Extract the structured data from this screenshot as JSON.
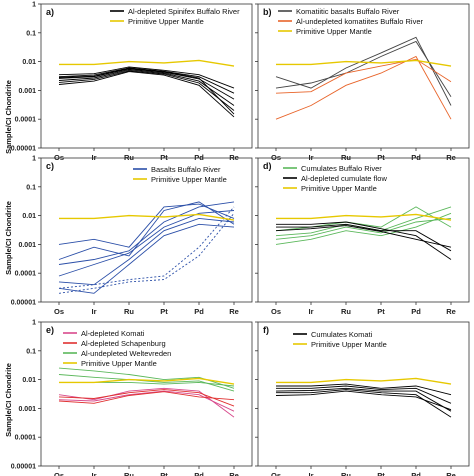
{
  "figure": {
    "y_label": "Sample/CI Chondrite"
  },
  "chart_data": [
    {
      "panel": "a)",
      "type": "line",
      "y_scale": "log",
      "ylim": [
        1e-05,
        1
      ],
      "categories": [
        "Os",
        "Ir",
        "Ru",
        "Pt",
        "Pd",
        "Re"
      ],
      "y_ticks": [
        "1",
        "0.1",
        "0.01",
        "0.001",
        "0.0001",
        "0.00001"
      ],
      "legend": [
        {
          "label": "Al-depleted Spinifex Buffalo River",
          "color": "#000000"
        },
        {
          "label": "Primitive Upper Mantle",
          "color": "#e6c800"
        }
      ],
      "series": [
        {
          "group": "Al-depleted Spinifex Buffalo River",
          "color": "#000000",
          "values": [
            0.0035,
            0.0038,
            0.0065,
            0.005,
            0.0035,
            0.0012
          ]
        },
        {
          "group": "Al-depleted Spinifex Buffalo River",
          "color": "#000000",
          "values": [
            0.003,
            0.0034,
            0.006,
            0.0046,
            0.003,
            0.0008
          ]
        },
        {
          "group": "Al-depleted Spinifex Buffalo River",
          "color": "#000000",
          "values": [
            0.0026,
            0.003,
            0.0056,
            0.0043,
            0.0025,
            0.0005
          ]
        },
        {
          "group": "Al-depleted Spinifex Buffalo River",
          "color": "#000000",
          "values": [
            0.0022,
            0.0027,
            0.0052,
            0.004,
            0.0021,
            0.0003
          ]
        },
        {
          "group": "Al-depleted Spinifex Buffalo River",
          "color": "#000000",
          "values": [
            0.0019,
            0.0024,
            0.0048,
            0.0037,
            0.0018,
            0.0002
          ]
        },
        {
          "group": "Al-depleted Spinifex Buffalo River",
          "color": "#000000",
          "values": [
            0.0016,
            0.0021,
            0.0045,
            0.0034,
            0.0015,
            0.00012
          ]
        },
        {
          "group": "Al-depleted Spinifex Buffalo River",
          "color": "#000000",
          "values": [
            0.0028,
            0.0031,
            0.0058,
            0.0045,
            0.0027,
            0.00015
          ]
        },
        {
          "group": "Primitive Upper Mantle",
          "color": "#e6c800",
          "values": [
            0.008,
            0.008,
            0.01,
            0.009,
            0.011,
            0.007
          ]
        }
      ]
    },
    {
      "panel": "b)",
      "type": "line",
      "y_scale": "log",
      "ylim": [
        1e-05,
        1
      ],
      "categories": [
        "Os",
        "Ir",
        "Ru",
        "Pt",
        "Pd",
        "Re"
      ],
      "y_ticks": [
        "1",
        "0.1",
        "0.01",
        "0.001",
        "0.0001",
        "0.00001"
      ],
      "legend": [
        {
          "label": "Komatiitic basalts Buffalo River",
          "color": "#444444"
        },
        {
          "label": "Al-undepleted komatiites Buffalo River",
          "color": "#e8642a"
        },
        {
          "label": "Primitive Upper Mantle",
          "color": "#e6c800"
        }
      ],
      "series": [
        {
          "group": "Komatiitic basalts Buffalo River",
          "color": "#444444",
          "values": [
            0.003,
            0.0012,
            0.006,
            0.02,
            0.07,
            0.0003
          ]
        },
        {
          "group": "Komatiitic basalts Buffalo River",
          "color": "#444444",
          "values": [
            0.0012,
            0.0018,
            0.004,
            0.015,
            0.05,
            0.0006
          ]
        },
        {
          "group": "Al-undepleted komatiites Buffalo River",
          "color": "#e8642a",
          "values": [
            0.0001,
            0.0003,
            0.0015,
            0.004,
            0.015,
            0.0001
          ]
        },
        {
          "group": "Al-undepleted komatiites Buffalo River",
          "color": "#e8642a",
          "values": [
            0.0008,
            0.0009,
            0.004,
            0.007,
            0.012,
            0.002
          ]
        },
        {
          "group": "Primitive Upper Mantle",
          "color": "#e6c800",
          "values": [
            0.008,
            0.008,
            0.01,
            0.009,
            0.011,
            0.007
          ]
        }
      ]
    },
    {
      "panel": "c)",
      "type": "line",
      "y_scale": "log",
      "ylim": [
        1e-05,
        1
      ],
      "categories": [
        "Os",
        "Ir",
        "Ru",
        "Pt",
        "Pd",
        "Re"
      ],
      "y_ticks": [
        "1",
        "0.1",
        "0.01",
        "0.001",
        "0.0001",
        "0.00001"
      ],
      "legend": [
        {
          "label": "Basalts Buffalo River",
          "color": "#2b4fa8"
        },
        {
          "label": "Primitive Upper Mantle",
          "color": "#e6c800"
        }
      ],
      "series": [
        {
          "group": "Basalts Buffalo River",
          "color": "#2b4fa8",
          "values": [
            0.001,
            0.0015,
            0.0008,
            0.02,
            0.025,
            0.008
          ]
        },
        {
          "group": "Basalts Buffalo River",
          "color": "#2b4fa8",
          "values": [
            0.0003,
            0.0008,
            0.0004,
            0.015,
            0.03,
            0.005
          ]
        },
        {
          "group": "Basalts Buffalo River",
          "color": "#2b4fa8",
          "values": [
            0.0002,
            0.0003,
            0.0006,
            0.006,
            0.02,
            0.03
          ]
        },
        {
          "group": "Basalts Buffalo River",
          "color": "#2b4fa8",
          "values": [
            8e-05,
            0.0002,
            0.0005,
            0.004,
            0.012,
            0.015
          ]
        },
        {
          "group": "Basalts Buffalo River",
          "color": "#2b4fa8",
          "values": [
            5e-05,
            4e-05,
            0.0003,
            0.003,
            0.008,
            0.006
          ]
        },
        {
          "group": "Basalts Buffalo River",
          "color": "#2b4fa8",
          "values": [
            3e-05,
            2e-05,
            0.0002,
            0.002,
            0.005,
            0.004
          ]
        },
        {
          "group": "Basalts Buffalo River",
          "color": "#2b4fa8",
          "dashed": true,
          "values": [
            2e-05,
            3e-05,
            5e-05,
            6e-05,
            0.0004,
            0.012
          ]
        },
        {
          "group": "Basalts Buffalo River",
          "color": "#2b4fa8",
          "dashed": true,
          "values": [
            3e-05,
            4e-05,
            6e-05,
            8e-05,
            0.0008,
            0.02
          ]
        },
        {
          "group": "Primitive Upper Mantle",
          "color": "#e6c800",
          "values": [
            0.008,
            0.008,
            0.01,
            0.009,
            0.011,
            0.007
          ]
        }
      ]
    },
    {
      "panel": "d)",
      "type": "line",
      "y_scale": "log",
      "ylim": [
        1e-05,
        1
      ],
      "categories": [
        "Os",
        "Ir",
        "Ru",
        "Pt",
        "Pd",
        "Re"
      ],
      "y_ticks": [
        "1",
        "0.1",
        "0.01",
        "0.001",
        "0.0001",
        "0.00001"
      ],
      "legend": [
        {
          "label": "Cumulates Buffalo River",
          "color": "#5cb85c"
        },
        {
          "label": "Al-depleted cumulate flow",
          "color": "#000000"
        },
        {
          "label": "Primitive Upper Mantle",
          "color": "#e6c800"
        }
      ],
      "series": [
        {
          "group": "Cumulates Buffalo River",
          "color": "#5cb85c",
          "values": [
            0.003,
            0.004,
            0.006,
            0.004,
            0.02,
            0.004
          ]
        },
        {
          "group": "Cumulates Buffalo River",
          "color": "#5cb85c",
          "values": [
            0.002,
            0.0025,
            0.005,
            0.003,
            0.008,
            0.02
          ]
        },
        {
          "group": "Cumulates Buffalo River",
          "color": "#5cb85c",
          "values": [
            0.0015,
            0.002,
            0.004,
            0.0025,
            0.006,
            0.008
          ]
        },
        {
          "group": "Cumulates Buffalo River",
          "color": "#5cb85c",
          "values": [
            0.001,
            0.0015,
            0.003,
            0.002,
            0.004,
            0.012
          ]
        },
        {
          "group": "Al-depleted cumulate flow",
          "color": "#000000",
          "values": [
            0.004,
            0.004,
            0.005,
            0.003,
            0.003,
            0.0006
          ]
        },
        {
          "group": "Al-depleted cumulate flow",
          "color": "#000000",
          "values": [
            0.005,
            0.005,
            0.006,
            0.0035,
            0.002,
            0.0003
          ]
        },
        {
          "group": "Al-depleted cumulate flow",
          "color": "#000000",
          "values": [
            0.003,
            0.0035,
            0.0045,
            0.0028,
            0.0015,
            0.0008
          ]
        },
        {
          "group": "Primitive Upper Mantle",
          "color": "#e6c800",
          "values": [
            0.008,
            0.008,
            0.01,
            0.009,
            0.011,
            0.007
          ]
        }
      ]
    },
    {
      "panel": "e)",
      "type": "line",
      "y_scale": "log",
      "ylim": [
        1e-05,
        1
      ],
      "categories": [
        "Os",
        "Ir",
        "Ru",
        "Pt",
        "Pd",
        "Re"
      ],
      "y_ticks": [
        "1",
        "0.1",
        "0.01",
        "0.001",
        "0.0001",
        "0.00001"
      ],
      "legend": [
        {
          "label": "Al-depleted Komati",
          "color": "#d84a8c"
        },
        {
          "label": "Al-depleted Schapenburg",
          "color": "#e03030"
        },
        {
          "label": "Al-undepleted Weltevreden",
          "color": "#5cb85c"
        },
        {
          "label": "Primitive Upper Mantle",
          "color": "#e6c800"
        }
      ],
      "series": [
        {
          "group": "Al-undepleted Weltevreden",
          "color": "#5cb85c",
          "values": [
            0.025,
            0.02,
            0.015,
            0.01,
            0.012,
            0.005
          ]
        },
        {
          "group": "Al-undepleted Weltevreden",
          "color": "#5cb85c",
          "values": [
            0.015,
            0.012,
            0.01,
            0.008,
            0.009,
            0.004
          ]
        },
        {
          "group": "Al-undepleted Weltevreden",
          "color": "#5cb85c",
          "values": [
            0.008,
            0.008,
            0.008,
            0.007,
            0.008,
            0.006
          ]
        },
        {
          "group": "Al-depleted Komati",
          "color": "#d84a8c",
          "values": [
            0.003,
            0.002,
            0.004,
            0.005,
            0.004,
            0.0005
          ]
        },
        {
          "group": "Al-depleted Komati",
          "color": "#d84a8c",
          "values": [
            0.002,
            0.0018,
            0.003,
            0.004,
            0.003,
            0.0008
          ]
        },
        {
          "group": "Al-depleted Schapenburg",
          "color": "#e03030",
          "values": [
            0.0025,
            0.0022,
            0.0035,
            0.0045,
            0.0035,
            0.0012
          ]
        },
        {
          "group": "Al-depleted Schapenburg",
          "color": "#e03030",
          "values": [
            0.0018,
            0.0015,
            0.0028,
            0.0038,
            0.0025,
            0.002
          ]
        },
        {
          "group": "Primitive Upper Mantle",
          "color": "#e6c800",
          "values": [
            0.008,
            0.008,
            0.01,
            0.009,
            0.011,
            0.007
          ]
        }
      ]
    },
    {
      "panel": "f)",
      "type": "line",
      "y_scale": "log",
      "ylim": [
        1e-05,
        1
      ],
      "categories": [
        "Os",
        "Ir",
        "Ru",
        "Pt",
        "Pd",
        "Re"
      ],
      "y_ticks": [
        "1",
        "0.1",
        "0.01",
        "0.001",
        "0.0001",
        "0.00001"
      ],
      "legend": [
        {
          "label": "Cumulates Komati",
          "color": "#000000"
        },
        {
          "label": "Primitive Upper Mantle",
          "color": "#e6c800"
        }
      ],
      "series": [
        {
          "group": "Cumulates Komati",
          "color": "#000000",
          "values": [
            0.006,
            0.006,
            0.007,
            0.005,
            0.006,
            0.003
          ]
        },
        {
          "group": "Cumulates Komati",
          "color": "#000000",
          "values": [
            0.005,
            0.005,
            0.006,
            0.0045,
            0.005,
            0.0015
          ]
        },
        {
          "group": "Cumulates Komati",
          "color": "#000000",
          "values": [
            0.004,
            0.0042,
            0.005,
            0.004,
            0.004,
            0.0008
          ]
        },
        {
          "group": "Cumulates Komati",
          "color": "#000000",
          "values": [
            0.0035,
            0.0035,
            0.0045,
            0.0035,
            0.003,
            0.0005
          ]
        },
        {
          "group": "Cumulates Komati",
          "color": "#000000",
          "values": [
            0.0028,
            0.003,
            0.004,
            0.003,
            0.0025,
            0.0009
          ]
        },
        {
          "group": "Primitive Upper Mantle",
          "color": "#e6c800",
          "values": [
            0.008,
            0.008,
            0.01,
            0.009,
            0.011,
            0.007
          ]
        }
      ]
    }
  ]
}
